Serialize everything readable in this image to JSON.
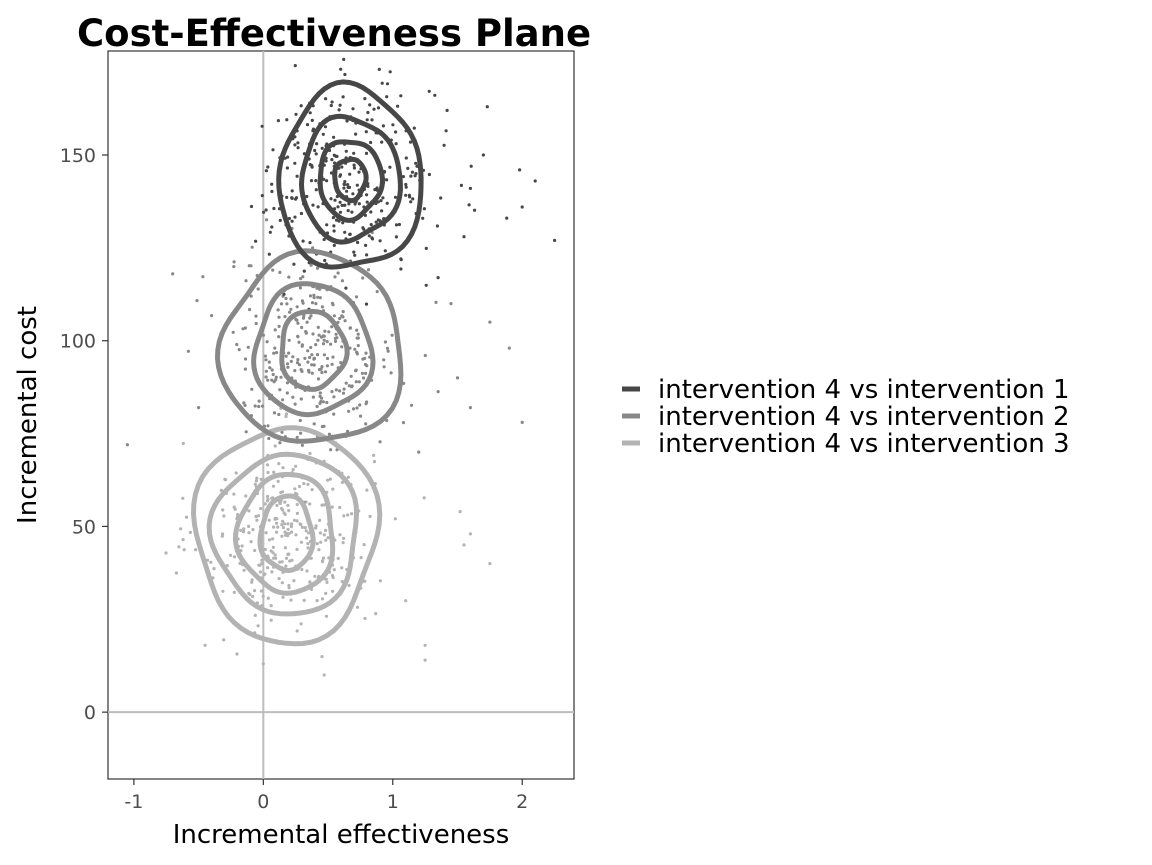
{
  "chart_data": {
    "type": "scatter",
    "title": "Cost-Effectiveness Plane",
    "xlabel": "Incremental effectiveness",
    "ylabel": "Incremental cost",
    "xlim": [
      -1.2,
      2.4
    ],
    "ylim": [
      -18,
      178
    ],
    "xticks": [
      -1,
      0,
      1,
      2
    ],
    "xtick_labels": [
      "-1",
      "0",
      "1",
      "2"
    ],
    "yticks": [
      0,
      50,
      100,
      150
    ],
    "ytick_labels": [
      "0",
      "50",
      "100",
      "150"
    ],
    "reference_lines": {
      "x": 0,
      "y": 0
    },
    "grid": false,
    "legend_position": "right",
    "contours": "2D density contours around each point cloud",
    "series": [
      {
        "name": "intervention 4 vs intervention 1",
        "color": "#474747",
        "center": [
          0.67,
          143.5
        ],
        "spread": [
          0.33,
          12.5
        ],
        "contour_levels": [
          {
            "rx": 0.12,
            "ry": 5.5
          },
          {
            "rx": 0.24,
            "ry": 10.5
          },
          {
            "rx": 0.38,
            "ry": 16.5
          },
          {
            "rx": 0.55,
            "ry": 24.5
          }
        ],
        "outliers": [
          [
            2.25,
            127
          ],
          [
            2.1,
            143
          ],
          [
            1.98,
            146
          ],
          [
            1.88,
            133
          ],
          [
            1.73,
            163
          ],
          [
            1.6,
            141
          ],
          [
            1.42,
            162
          ],
          [
            2.0,
            136
          ],
          [
            1.7,
            150
          ],
          [
            1.35,
            117
          ],
          [
            1.55,
            128
          ]
        ]
      },
      {
        "name": "intervention 4 vs intervention 2",
        "color": "#888888",
        "center": [
          0.38,
          97.5
        ],
        "spread": [
          0.33,
          12.5
        ],
        "contour_levels": [
          {
            "rx": 0.25,
            "ry": 10.5
          },
          {
            "rx": 0.45,
            "ry": 17.5
          },
          {
            "rx": 0.7,
            "ry": 25.5
          }
        ],
        "outliers": [
          [
            2.0,
            78
          ],
          [
            1.9,
            98
          ],
          [
            1.75,
            105
          ],
          [
            1.6,
            82
          ],
          [
            1.5,
            90
          ],
          [
            -0.7,
            118
          ],
          [
            -1.05,
            72
          ],
          [
            -0.5,
            82
          ],
          [
            1.2,
            70
          ],
          [
            1.45,
            110
          ]
        ]
      },
      {
        "name": "intervention 4 vs intervention 3",
        "color": "#b3b3b3",
        "center": [
          0.18,
          48
        ],
        "spread": [
          0.33,
          12.5
        ],
        "contour_levels": [
          {
            "rx": 0.2,
            "ry": 10
          },
          {
            "rx": 0.37,
            "ry": 16
          },
          {
            "rx": 0.56,
            "ry": 21.5
          },
          {
            "rx": 0.7,
            "ry": 29
          }
        ],
        "outliers": [
          [
            1.55,
            45
          ],
          [
            1.52,
            54
          ],
          [
            1.75,
            40
          ],
          [
            1.25,
            14
          ],
          [
            1.25,
            18
          ],
          [
            -0.45,
            18
          ],
          [
            0.47,
            10
          ],
          [
            0.0,
            13
          ],
          [
            1.1,
            30
          ],
          [
            1.6,
            48
          ]
        ]
      }
    ]
  }
}
